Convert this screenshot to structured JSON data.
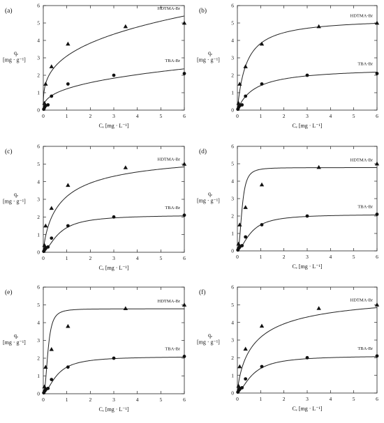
{
  "chart_data": [
    {
      "type": "scatter",
      "panel_label": "(a)",
      "xlabel": "Cₑ [mg · L⁻¹]",
      "ylabel": "qₑ\n[mg · g⁻¹]",
      "xlim": [
        0,
        6
      ],
      "ylim": [
        0,
        6
      ],
      "xticks": [
        0,
        1,
        2,
        3,
        4,
        5,
        6
      ],
      "yticks": [
        0,
        1,
        2,
        3,
        4,
        5,
        6
      ],
      "grid": false,
      "fit_model": "freundlich",
      "series": [
        {
          "name": "HDTMA-Br",
          "marker": "triangle",
          "x": [
            0.05,
            0.1,
            0.35,
            1.05,
            3.5,
            6.0
          ],
          "y": [
            0.4,
            1.5,
            2.5,
            3.8,
            4.8,
            5.0
          ],
          "fit": {
            "k": 3.1,
            "n": 0.31
          }
        },
        {
          "name": "TBA-Br",
          "marker": "circle",
          "x": [
            0.02,
            0.05,
            0.1,
            0.2,
            0.35,
            1.05,
            3.0,
            6.0
          ],
          "y": [
            0.05,
            0.15,
            0.25,
            0.3,
            0.8,
            1.5,
            2.0,
            2.1
          ],
          "fit": {
            "k": 1.22,
            "n": 0.37
          }
        }
      ]
    },
    {
      "type": "scatter",
      "panel_label": "(b)",
      "xlabel": "Cₑ [mg · L⁻¹]",
      "ylabel": "qₑ\n[mg · g⁻¹]",
      "xlim": [
        0,
        6
      ],
      "ylim": [
        0,
        6
      ],
      "xticks": [
        0,
        1,
        2,
        3,
        4,
        5,
        6
      ],
      "yticks": [
        0,
        1,
        2,
        3,
        4,
        5,
        6
      ],
      "grid": false,
      "fit_model": "langmuir",
      "series": [
        {
          "name": "HDTMA-Br",
          "marker": "triangle",
          "x": [
            0.05,
            0.1,
            0.35,
            1.05,
            3.5,
            6.0
          ],
          "y": [
            0.4,
            1.5,
            2.5,
            3.8,
            4.8,
            5.0
          ],
          "fit": {
            "qm": 5.3,
            "kl": 2.6
          }
        },
        {
          "name": "TBA-Br",
          "marker": "circle",
          "x": [
            0.02,
            0.05,
            0.1,
            0.2,
            0.35,
            1.05,
            3.0,
            6.0
          ],
          "y": [
            0.05,
            0.15,
            0.25,
            0.3,
            0.8,
            1.5,
            2.0,
            2.1
          ],
          "fit": {
            "qm": 2.45,
            "kl": 1.35
          }
        }
      ]
    },
    {
      "type": "scatter",
      "panel_label": "(c)",
      "xlabel": "Cₑ [mg · L⁻¹]",
      "ylabel": "qₑ\n[mg · g⁻¹]",
      "xlim": [
        0,
        6
      ],
      "ylim": [
        0,
        6
      ],
      "xticks": [
        0,
        1,
        2,
        3,
        4,
        5,
        6
      ],
      "yticks": [
        0,
        1,
        2,
        3,
        4,
        5,
        6
      ],
      "grid": false,
      "fit_model": "sips",
      "series": [
        {
          "name": "HDTMA-Br",
          "marker": "triangle",
          "x": [
            0.05,
            0.1,
            0.35,
            1.05,
            3.5,
            6.0
          ],
          "y": [
            0.4,
            1.5,
            2.5,
            3.8,
            4.8,
            5.0
          ],
          "fit": {
            "qm": 5.8,
            "ks": 1.25,
            "n": 0.8
          }
        },
        {
          "name": "TBA-Br",
          "marker": "circle",
          "x": [
            0.02,
            0.05,
            0.1,
            0.2,
            0.35,
            1.05,
            3.0,
            6.0
          ],
          "y": [
            0.05,
            0.15,
            0.25,
            0.3,
            0.8,
            1.5,
            2.0,
            2.1
          ],
          "fit": {
            "qm": 2.12,
            "ks": 1.5,
            "n": 1.6
          }
        }
      ]
    },
    {
      "type": "scatter",
      "panel_label": "(d)",
      "xlabel": "Cₑ [mg · L⁻¹]",
      "ylabel": "qₑ\n[mg · g⁻¹]",
      "xlim": [
        0,
        6
      ],
      "ylim": [
        0,
        6
      ],
      "xticks": [
        0,
        1,
        2,
        3,
        4,
        5,
        6
      ],
      "yticks": [
        0,
        1,
        2,
        3,
        4,
        5,
        6
      ],
      "grid": false,
      "fit_model": "sips",
      "series": [
        {
          "name": "HDTMA-Br",
          "marker": "triangle",
          "x": [
            0.05,
            0.1,
            0.35,
            1.05,
            3.5,
            6.0
          ],
          "y": [
            0.4,
            1.5,
            2.5,
            3.8,
            4.8,
            5.0
          ],
          "fit": {
            "qm": 4.78,
            "ks": 5.0,
            "n": 2.4
          }
        },
        {
          "name": "TBA-Br",
          "marker": "circle",
          "x": [
            0.02,
            0.05,
            0.1,
            0.2,
            0.35,
            1.05,
            3.0,
            6.0
          ],
          "y": [
            0.05,
            0.15,
            0.25,
            0.3,
            0.8,
            1.5,
            2.0,
            2.1
          ],
          "fit": {
            "qm": 2.1,
            "ks": 1.7,
            "n": 1.7
          }
        }
      ]
    },
    {
      "type": "scatter",
      "panel_label": "(e)",
      "xlabel": "Cₑ [mg · L⁻¹]",
      "ylabel": "qₑ\n[mg · g⁻¹]",
      "xlim": [
        0,
        6
      ],
      "ylim": [
        0,
        6
      ],
      "xticks": [
        0,
        1,
        2,
        3,
        4,
        5,
        6
      ],
      "yticks": [
        0,
        1,
        2,
        3,
        4,
        5,
        6
      ],
      "grid": false,
      "fit_model": "sips",
      "series": [
        {
          "name": "HDTMA-Br",
          "marker": "triangle",
          "x": [
            0.05,
            0.1,
            0.35,
            1.05,
            3.5,
            6.0
          ],
          "y": [
            0.4,
            1.5,
            2.5,
            3.8,
            4.8,
            5.0
          ],
          "fit": {
            "qm": 4.78,
            "ks": 5.0,
            "n": 2.4
          }
        },
        {
          "name": "TBA-Br",
          "marker": "circle",
          "x": [
            0.02,
            0.05,
            0.1,
            0.2,
            0.35,
            1.05,
            3.0,
            6.0
          ],
          "y": [
            0.05,
            0.15,
            0.25,
            0.3,
            0.8,
            1.5,
            2.0,
            2.1
          ],
          "fit": {
            "qm": 2.1,
            "ks": 1.7,
            "n": 1.7
          }
        }
      ]
    },
    {
      "type": "scatter",
      "panel_label": "(f)",
      "xlabel": "Cₑ [mg · L⁻¹]",
      "ylabel": "qₑ\n[mg · g⁻¹]",
      "xlim": [
        0,
        6
      ],
      "ylim": [
        0,
        6
      ],
      "xticks": [
        0,
        1,
        2,
        3,
        4,
        5,
        6
      ],
      "yticks": [
        0,
        1,
        2,
        3,
        4,
        5,
        6
      ],
      "grid": false,
      "fit_model": "sips",
      "series": [
        {
          "name": "HDTMA-Br",
          "marker": "triangle",
          "x": [
            0.05,
            0.1,
            0.35,
            1.05,
            3.5,
            6.0
          ],
          "y": [
            0.4,
            1.5,
            2.5,
            3.8,
            4.8,
            5.0
          ],
          "fit": {
            "qm": 5.8,
            "ks": 1.25,
            "n": 0.8
          }
        },
        {
          "name": "TBA-Br",
          "marker": "circle",
          "x": [
            0.02,
            0.05,
            0.1,
            0.2,
            0.35,
            1.05,
            3.0,
            6.0
          ],
          "y": [
            0.05,
            0.15,
            0.25,
            0.3,
            0.8,
            1.5,
            2.0,
            2.1
          ],
          "fit": {
            "qm": 2.12,
            "ks": 1.5,
            "n": 1.6
          }
        }
      ]
    }
  ]
}
